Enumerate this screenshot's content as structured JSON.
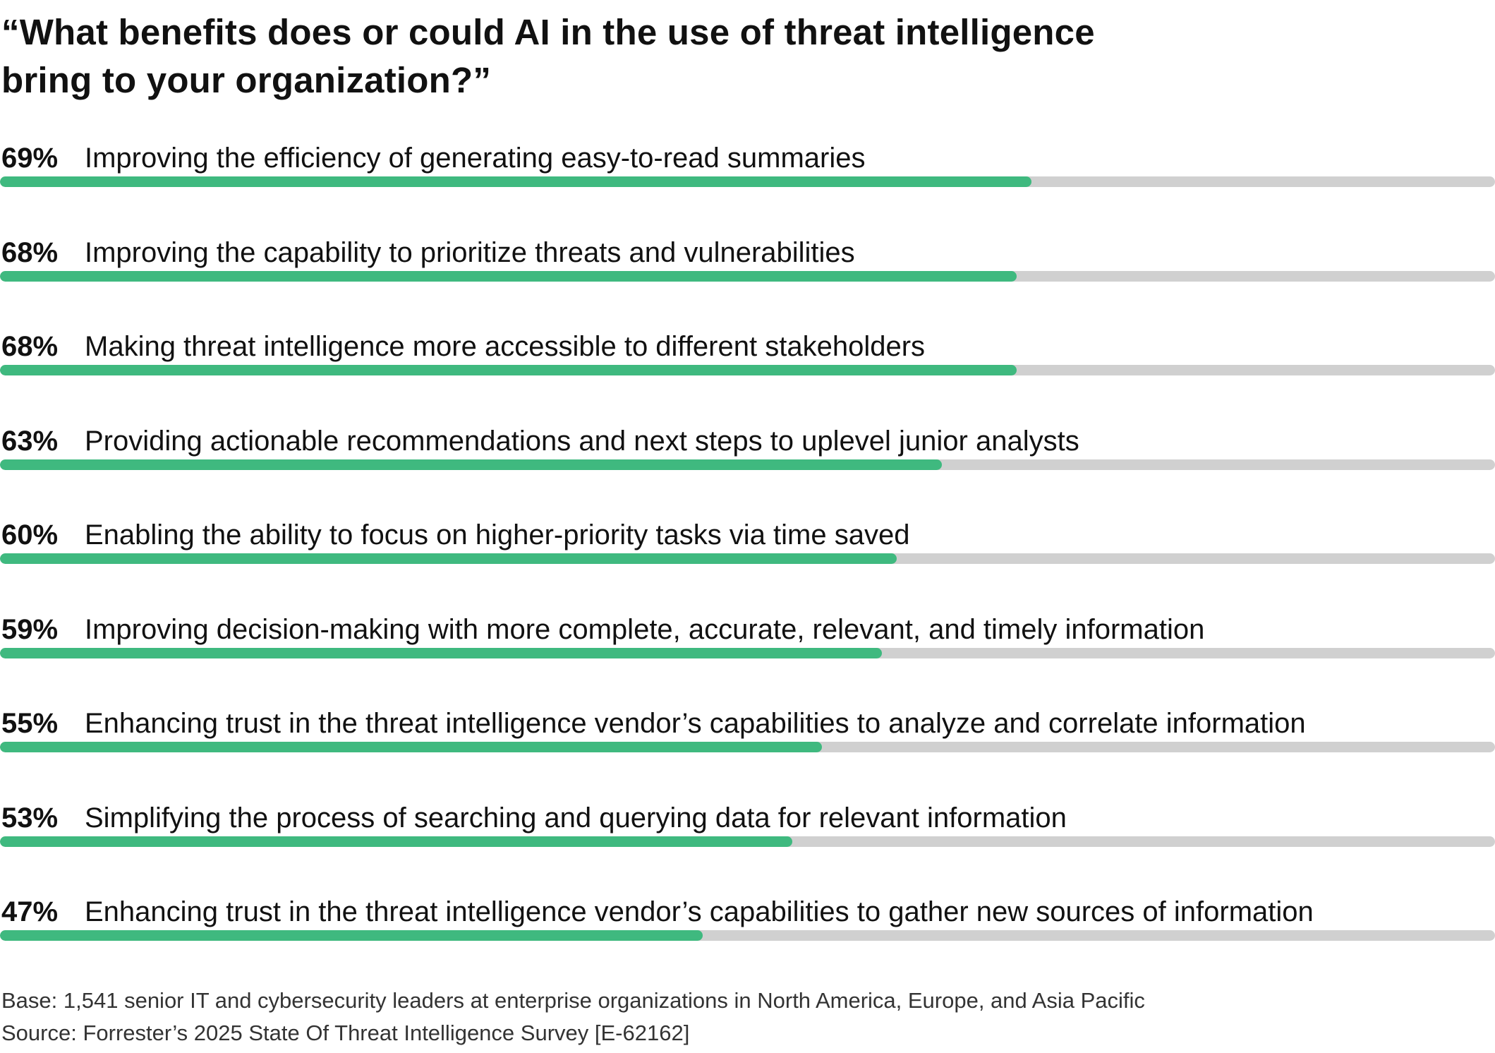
{
  "colors": {
    "bar_fill": "#3fb97f",
    "bar_track": "#d0d0d0",
    "text": "#111111"
  },
  "chart_data": {
    "type": "bar",
    "orientation": "horizontal",
    "title_line1": "“What benefits does or could AI in the use of threat intelligence",
    "title_line2": "bring to your organization?”",
    "xlim": [
      0,
      100
    ],
    "categories": [
      "Improving the efficiency of generating easy-to-read summaries",
      "Improving the capability to prioritize threats and vulnerabilities",
      "Making threat intelligence more accessible to different stakeholders",
      "Providing actionable recommendations and next steps to uplevel junior analysts",
      "Enabling the ability to focus on higher-priority tasks via time saved",
      "Improving decision-making with more complete, accurate, relevant, and timely information",
      "Enhancing trust in the threat intelligence vendor’s capabilities to analyze and correlate information",
      "Simplifying the process of searching and querying data for relevant information",
      "Enhancing trust in the threat intelligence vendor’s capabilities to gather new sources of information"
    ],
    "values": [
      69,
      68,
      68,
      63,
      60,
      59,
      55,
      53,
      47
    ],
    "value_labels": [
      "69%",
      "68%",
      "68%",
      "63%",
      "60%",
      "59%",
      "55%",
      "53%",
      "47%"
    ]
  },
  "footnotes": {
    "base": "Base: 1,541 senior IT and cybersecurity leaders at enterprise organizations in North America, Europe, and Asia Pacific",
    "source": "Source: Forrester’s 2025 State Of Threat Intelligence Survey [E-62162]"
  }
}
